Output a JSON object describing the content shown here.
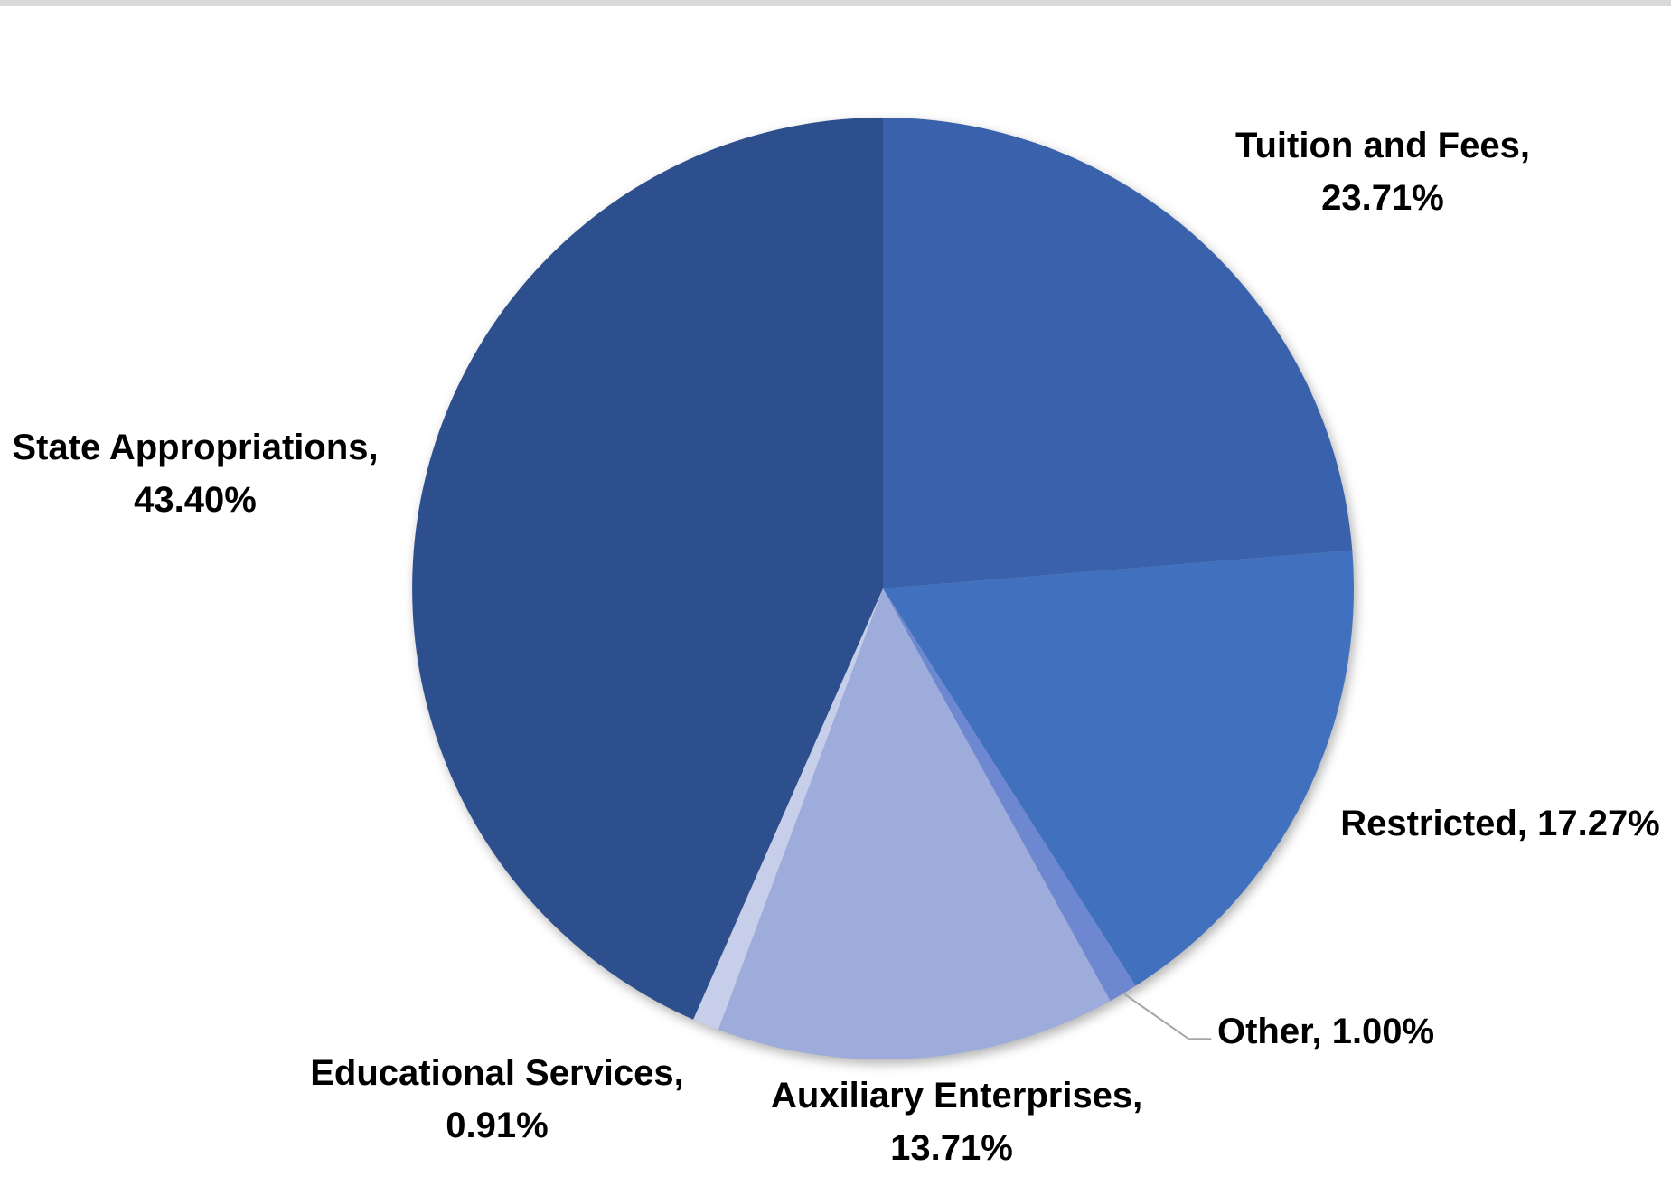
{
  "page": {
    "background_color": "#FFFFFF",
    "top_bar_color": "#D9D9D9"
  },
  "chart_data": {
    "type": "pie",
    "start_angle_deg": 0,
    "direction": "clockwise",
    "legend_position": "none",
    "data_labels": "outside-end, category name + percentage",
    "label_text_color": "#000000",
    "leader_line_color": "#A6A6A6",
    "segments": [
      {
        "name": "Tuition and Fees",
        "value": 23.71,
        "color": "#3A62AC",
        "line1": "Tuition and Fees,",
        "line2": "23.71%"
      },
      {
        "name": "Restricted",
        "value": 17.27,
        "color": "#4070BE",
        "line1": "Restricted, 17.27%"
      },
      {
        "name": "Other",
        "value": 1.0,
        "color": "#6D87D0",
        "line1": "Other, 1.00%",
        "has_leader": true
      },
      {
        "name": "Auxiliary Enterprises",
        "value": 13.71,
        "color": "#9DACDB",
        "line1": "Auxiliary Enterprises,",
        "line2": "13.71%"
      },
      {
        "name": "Educational Services",
        "value": 0.91,
        "color": "#C6CEE9",
        "line1": "Educational Services,",
        "line2": "0.91%"
      },
      {
        "name": "State Appropriations",
        "value": 43.4,
        "color": "#2E4F8D",
        "line1": "State Appropriations,",
        "line2": "43.40%"
      }
    ]
  }
}
